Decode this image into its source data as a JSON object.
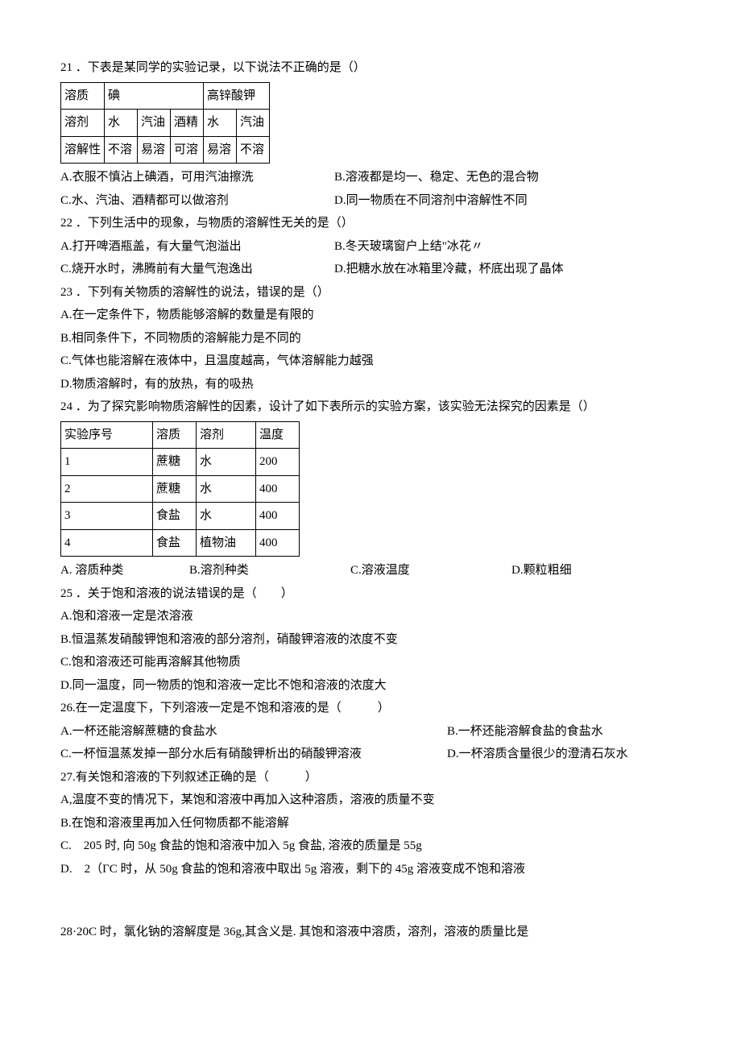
{
  "q21": {
    "stem": "21 ．下表是某同学的实验记录，以下说法不正确的是（）",
    "table": {
      "r1": [
        "溶质",
        "碘",
        "高锌酸钾"
      ],
      "r2": [
        "溶剂",
        "水",
        "汽油",
        "酒精",
        "水",
        "汽油"
      ],
      "r3": [
        "溶解性",
        "不溶",
        "易溶",
        "可溶",
        "易溶",
        "不溶"
      ]
    },
    "A": "A.衣服不慎沾上碘酒，可用汽油擦洗",
    "B": "B.溶液都是均一、稳定、无色的混合物",
    "C": "C.水、汽油、酒精都可以做溶剂",
    "D": "D.同一物质在不同溶剂中溶解性不同"
  },
  "q22": {
    "stem": "22 ．下列生活中的现象，与物质的溶解性无关的是（）",
    "A": "A.打开啤酒瓶盖，有大量气泡溢出",
    "B": "B.冬天玻璃窗户上结\"冰花〃",
    "C": "C.烧开水时，沸腾前有大量气泡逸出",
    "D": "D.把糖水放在冰箱里冷藏，杯底出现了晶体"
  },
  "q23": {
    "stem": "23 ．下列有关物质的溶解性的说法，错误的是（）",
    "A": "A.在一定条件下，物质能够溶解的数量是有限的",
    "B": "B.相同条件下，不同物质的溶解能力是不同的",
    "C": "C.气体也能溶解在液体中，且温度越高，气体溶解能力越强",
    "D": "D.物质溶解时，有的放热，有的吸热"
  },
  "q24": {
    "stem": "24 ．为了探究影响物质溶解性的因素，设计了如下表所示的实验方案，该实验无法探究的因素是（）",
    "headers": [
      "实验序号",
      "溶质",
      "溶剂",
      "温度"
    ],
    "rows": [
      [
        "1",
        "蔗糖",
        "水",
        "200"
      ],
      [
        "2",
        "蔗糖",
        "水",
        "400"
      ],
      [
        "3",
        "食盐",
        "水",
        "400"
      ],
      [
        "4",
        "食盐",
        "植物油",
        "400"
      ]
    ],
    "A": "A. 溶质种类",
    "B": "B.溶剂种类",
    "C": "C.溶液温度",
    "D": "D.颗粒粗细"
  },
  "q25": {
    "stem": "25 ．关于饱和溶液的说法错误的是（　　）",
    "A": "A.饱和溶液一定是浓溶液",
    "B": "B.恒温蒸发硝酸钾饱和溶液的部分溶剂，硝酸钾溶液的浓度不变",
    "C": "C.饱和溶液还可能再溶解其他物质",
    "D": "D.同一温度，同一物质的饱和溶液一定比不饱和溶液的浓度大"
  },
  "q26": {
    "stem": "26.在一定温度下，下列溶液一定是不饱和溶液的是（　　　）",
    "A": "A.一杯还能溶解蔗糖的食盐水",
    "B": "B.一杯还能溶解食盐的食盐水",
    "C": "C.一杯恒温蒸发掉一部分水后有硝酸钾析出的硝酸钾溶液",
    "D": "D.一杯溶质含量很少的澄清石灰水"
  },
  "q27": {
    "stem": "27.有关饱和溶液的下列叙述正确的是（　　　）",
    "A": "A,温度不变的情况下，某饱和溶液中再加入这种溶质，溶液的质量不变",
    "B": "B.在饱和溶液里再加入任何物质都不能溶解",
    "C": "C.　205 时, 向 50g 食盐的饱和溶液中加入 5g 食盐, 溶液的质量是 55g",
    "D": "D.　2（ΓC 时，从 50g 食盐的饱和溶液中取出 5g 溶液，剩下的 45g 溶液变成不饱和溶液"
  },
  "q28": {
    "stem": "28·20C 时，氯化钠的溶解度是 36g,其含义是. 其饱和溶液中溶质，溶剂，溶液的质量比是"
  }
}
